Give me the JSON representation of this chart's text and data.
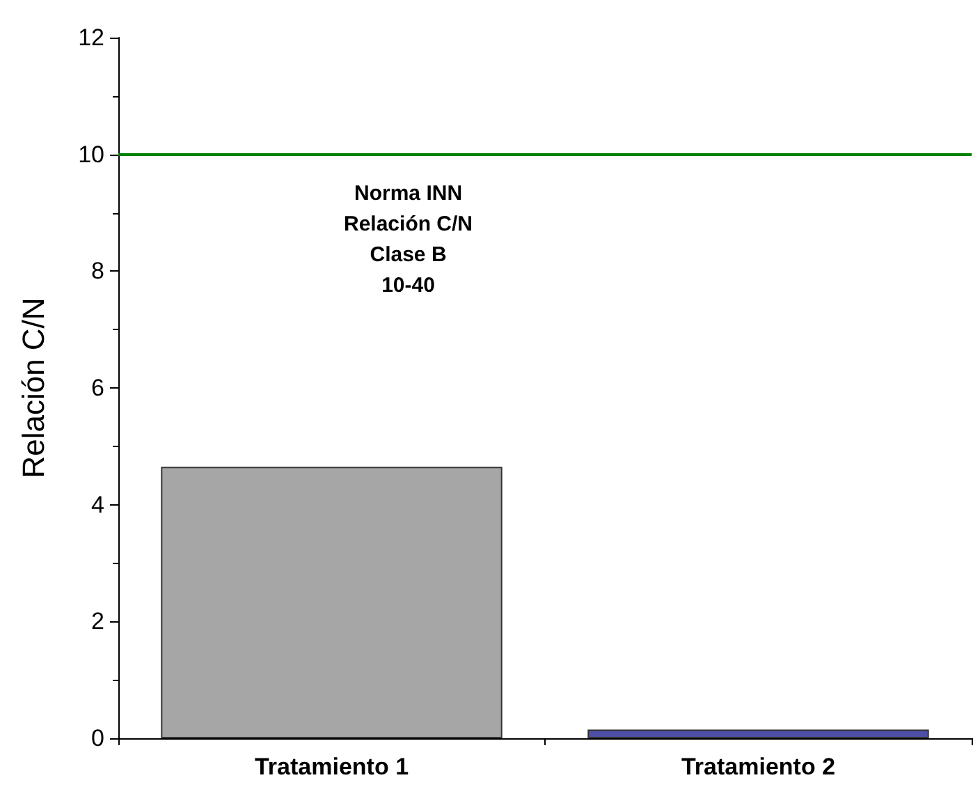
{
  "chart_data": {
    "type": "bar",
    "ylabel": "Relación C/N",
    "categories": [
      "Tratamiento 1",
      "Tratamiento 2"
    ],
    "values": [
      4.65,
      0.15
    ],
    "colors": [
      "#a6a6a6",
      "#4f4fa8"
    ],
    "ylim": [
      0,
      12
    ],
    "yticks": [
      0,
      2,
      4,
      6,
      8,
      10,
      12
    ],
    "grid": false,
    "ref_lines": [
      {
        "axis": "y",
        "value": 10,
        "label": null,
        "color": "#008000",
        "line_style": "solid"
      }
    ],
    "annotations": [
      "Norma INN\nRelación C/N\nClase B\n10-40"
    ]
  }
}
